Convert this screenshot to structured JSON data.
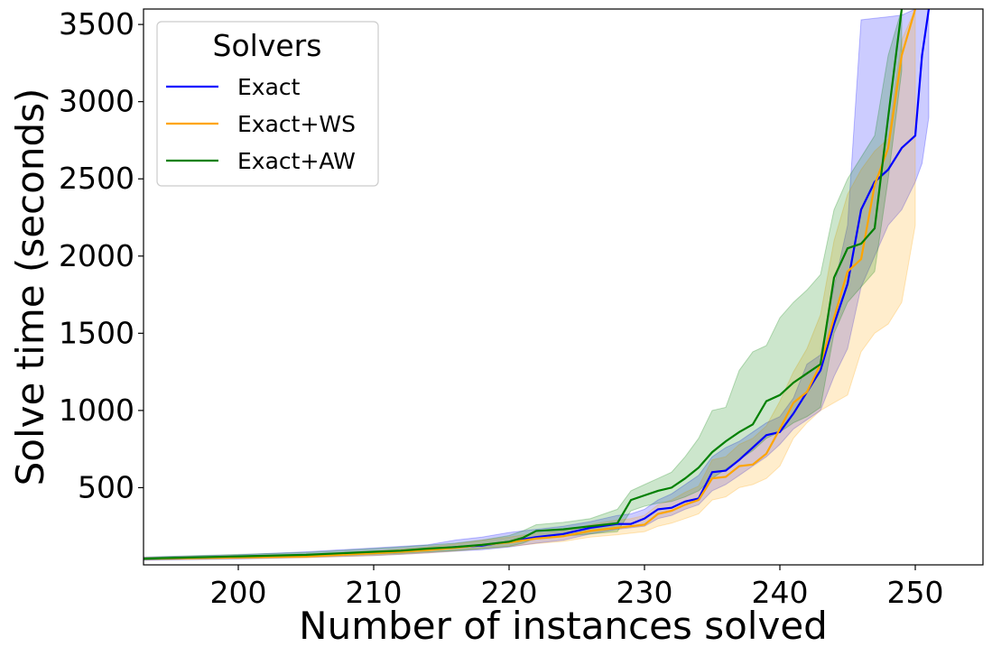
{
  "chart_data": {
    "type": "line",
    "title": "",
    "xlabel": "Number of instances solved",
    "ylabel": "Solve time (seconds)",
    "xlim": [
      193,
      255
    ],
    "ylim": [
      0,
      3600
    ],
    "xticks": [
      "200",
      "210",
      "220",
      "230",
      "240",
      "250"
    ],
    "yticks": [
      "500",
      "1000",
      "1500",
      "2000",
      "2500",
      "3000",
      "3500"
    ],
    "legend": {
      "title": "Solvers",
      "position": "top-left"
    },
    "series": [
      {
        "name": "Exact",
        "color": "#0000ff",
        "x": [
          193,
          195,
          200,
          205,
          210,
          212,
          214,
          216,
          218,
          220,
          222,
          224,
          226,
          228,
          229,
          230,
          231,
          232,
          233,
          234,
          235,
          236,
          237,
          238,
          239,
          240,
          241,
          242,
          243,
          244,
          245,
          246,
          247,
          248,
          249,
          250,
          250.5,
          251
        ],
        "y": [
          40,
          42,
          50,
          60,
          80,
          90,
          100,
          115,
          125,
          150,
          180,
          200,
          240,
          265,
          265,
          300,
          360,
          370,
          410,
          430,
          600,
          610,
          680,
          760,
          840,
          860,
          980,
          1120,
          1260,
          1560,
          1820,
          2300,
          2480,
          2560,
          2700,
          2780,
          3300,
          3600
        ],
        "upper": [
          50,
          55,
          65,
          85,
          110,
          120,
          130,
          160,
          180,
          210,
          230,
          250,
          280,
          320,
          330,
          360,
          420,
          460,
          520,
          580,
          700,
          760,
          800,
          860,
          920,
          960,
          1080,
          1300,
          1360,
          1800,
          2200,
          3530,
          3540,
          3550,
          3560,
          3600,
          3600,
          3600
        ],
        "lower": [
          30,
          32,
          38,
          48,
          60,
          68,
          78,
          88,
          98,
          115,
          140,
          160,
          200,
          230,
          240,
          250,
          300,
          320,
          360,
          390,
          480,
          520,
          580,
          640,
          700,
          780,
          880,
          940,
          1000,
          1220,
          1400,
          1800,
          2000,
          2200,
          2300,
          2480,
          2600,
          2900
        ]
      },
      {
        "name": "Exact+WS",
        "color": "#ffa500",
        "x": [
          193,
          195,
          200,
          205,
          210,
          212,
          214,
          216,
          218,
          220,
          222,
          224,
          226,
          228,
          229,
          230,
          231,
          232,
          233,
          234,
          235,
          236,
          237,
          238,
          239,
          240,
          241,
          242,
          243,
          244,
          245,
          246,
          247,
          248,
          249,
          250
        ],
        "y": [
          40,
          42,
          48,
          55,
          75,
          85,
          95,
          110,
          130,
          145,
          170,
          185,
          220,
          240,
          250,
          260,
          330,
          350,
          390,
          420,
          560,
          570,
          640,
          650,
          720,
          880,
          1050,
          1120,
          1300,
          1600,
          1900,
          1980,
          2460,
          2700,
          3300,
          3600
        ],
        "upper": [
          48,
          50,
          58,
          68,
          90,
          102,
          115,
          135,
          160,
          180,
          205,
          220,
          260,
          290,
          300,
          320,
          390,
          420,
          470,
          510,
          680,
          700,
          780,
          820,
          900,
          1060,
          1250,
          1400,
          1620,
          2100,
          2400,
          2560,
          2680,
          2760,
          3400,
          3600
        ],
        "lower": [
          32,
          34,
          40,
          45,
          60,
          68,
          78,
          90,
          105,
          118,
          138,
          152,
          180,
          195,
          205,
          215,
          250,
          270,
          300,
          330,
          420,
          440,
          500,
          520,
          560,
          640,
          820,
          920,
          1000,
          1050,
          1100,
          1380,
          1500,
          1560,
          1700,
          2200
        ]
      },
      {
        "name": "Exact+AW",
        "color": "#008000",
        "x": [
          193,
          195,
          200,
          205,
          210,
          212,
          214,
          216,
          218,
          220,
          221,
          222,
          224,
          226,
          228,
          229,
          230,
          231,
          232,
          233,
          234,
          235,
          236,
          237,
          238,
          239,
          240,
          241,
          242,
          243,
          244,
          245,
          246,
          247,
          248,
          249
        ],
        "y": [
          40,
          45,
          55,
          65,
          85,
          92,
          105,
          115,
          130,
          150,
          175,
          220,
          230,
          250,
          270,
          420,
          450,
          480,
          500,
          560,
          630,
          730,
          800,
          860,
          910,
          1060,
          1100,
          1180,
          1240,
          1300,
          1860,
          2050,
          2080,
          2180,
          2900,
          3600
        ],
        "upper": [
          48,
          55,
          68,
          80,
          105,
          115,
          128,
          140,
          160,
          190,
          220,
          260,
          275,
          300,
          360,
          480,
          520,
          560,
          600,
          700,
          820,
          1000,
          1020,
          1260,
          1380,
          1420,
          1600,
          1700,
          1780,
          1880,
          2300,
          2500,
          2640,
          2780,
          3300,
          3600
        ],
        "lower": [
          32,
          36,
          44,
          52,
          68,
          74,
          84,
          92,
          105,
          120,
          140,
          175,
          185,
          200,
          215,
          350,
          380,
          400,
          410,
          440,
          480,
          560,
          620,
          680,
          740,
          820,
          860,
          920,
          960,
          1020,
          1500,
          1700,
          1800,
          1900,
          2500,
          3200
        ]
      }
    ]
  }
}
